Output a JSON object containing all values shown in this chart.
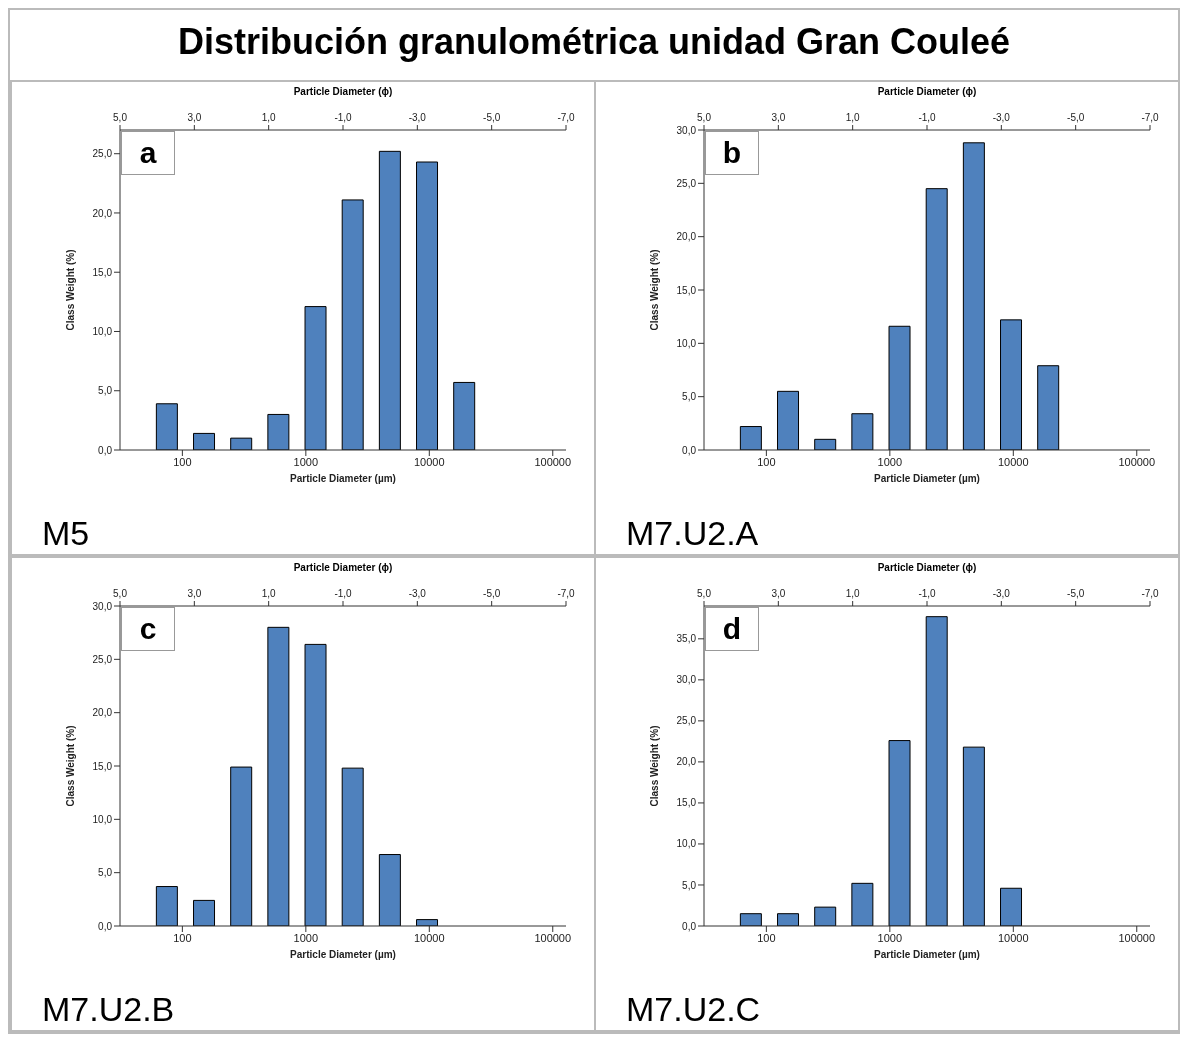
{
  "chart_data": [
    {
      "type": "bar",
      "title": "Distribución granulométrica unidad Gran Couleé",
      "xlabel": "Particle Diameter (µm)",
      "x2label": "Particle Diameter (ϕ)",
      "ylabel": "Class Weight (%)",
      "annotations": [
        "a",
        "M5"
      ],
      "log": "x",
      "color": "#4f81bd",
      "x": [
        75,
        150,
        300,
        600,
        1200,
        2400,
        4800,
        9600,
        19200
      ],
      "values": [
        3.9,
        1.4,
        1.0,
        3.0,
        12.1,
        21.1,
        25.2,
        24.3,
        5.7
      ],
      "xlim": [
        31.25,
        128000
      ],
      "xticks": [
        100,
        1000,
        10000,
        100000
      ],
      "x2lim": [
        5,
        -7
      ],
      "x2ticks": [
        {
          "value": 5,
          "label": "5,0"
        },
        {
          "value": 3,
          "label": "3,0"
        },
        {
          "value": 1,
          "label": "1,0"
        },
        {
          "value": -1,
          "label": "-1,0"
        },
        {
          "value": -3,
          "label": "-3,0"
        },
        {
          "value": -5,
          "label": "-5,0"
        },
        {
          "value": -7,
          "label": "-7,0"
        }
      ],
      "ylim": [
        0,
        27
      ],
      "yticks": [
        {
          "value": 0,
          "label": "0,0"
        },
        {
          "value": 5,
          "label": "5,0"
        },
        {
          "value": 10,
          "label": "10,0"
        },
        {
          "value": 15,
          "label": "15,0"
        },
        {
          "value": 20,
          "label": "20,0"
        },
        {
          "value": 25,
          "label": "25,0"
        }
      ],
      "grid": false
    },
    {
      "type": "bar",
      "xlabel": "Particle Diameter (µm)",
      "x2label": "Particle Diameter (ϕ)",
      "ylabel": "Class Weight (%)",
      "annotations": [
        "b",
        "M7.U2.A"
      ],
      "log": "x",
      "color": "#4f81bd",
      "x": [
        75,
        150,
        300,
        600,
        1200,
        2400,
        4800,
        9600,
        19200
      ],
      "values": [
        2.2,
        5.5,
        1.0,
        3.4,
        11.6,
        24.5,
        28.8,
        12.2,
        7.9
      ],
      "xlim": [
        31.25,
        128000
      ],
      "xticks": [
        100,
        1000,
        10000,
        100000
      ],
      "x2lim": [
        5,
        -7
      ],
      "x2ticks": [
        {
          "value": 5,
          "label": "5,0"
        },
        {
          "value": 3,
          "label": "3,0"
        },
        {
          "value": 1,
          "label": "1,0"
        },
        {
          "value": -1,
          "label": "-1,0"
        },
        {
          "value": -3,
          "label": "-3,0"
        },
        {
          "value": -5,
          "label": "-5,0"
        },
        {
          "value": -7,
          "label": "-7,0"
        }
      ],
      "ylim": [
        0,
        30
      ],
      "yticks": [
        {
          "value": 0,
          "label": "0,0"
        },
        {
          "value": 5,
          "label": "5,0"
        },
        {
          "value": 10,
          "label": "10,0"
        },
        {
          "value": 15,
          "label": "15,0"
        },
        {
          "value": 20,
          "label": "20,0"
        },
        {
          "value": 25,
          "label": "25,0"
        },
        {
          "value": 30,
          "label": "30,0"
        }
      ],
      "grid": false
    },
    {
      "type": "bar",
      "xlabel": "Particle Diameter (µm)",
      "x2label": "Particle Diameter (ϕ)",
      "ylabel": "Class Weight (%)",
      "annotations": [
        "c",
        "M7.U2.B"
      ],
      "log": "x",
      "color": "#4f81bd",
      "x": [
        75,
        150,
        300,
        600,
        1200,
        2400,
        4800,
        9600
      ],
      "values": [
        3.7,
        2.4,
        14.9,
        28.0,
        26.4,
        14.8,
        6.7,
        0.6
      ],
      "xlim": [
        31.25,
        128000
      ],
      "xticks": [
        100,
        1000,
        10000,
        100000
      ],
      "x2lim": [
        5,
        -7
      ],
      "x2ticks": [
        {
          "value": 5,
          "label": "5,0"
        },
        {
          "value": 3,
          "label": "3,0"
        },
        {
          "value": 1,
          "label": "1,0"
        },
        {
          "value": -1,
          "label": "-1,0"
        },
        {
          "value": -3,
          "label": "-3,0"
        },
        {
          "value": -5,
          "label": "-5,0"
        },
        {
          "value": -7,
          "label": "-7,0"
        }
      ],
      "ylim": [
        0,
        30
      ],
      "yticks": [
        {
          "value": 0,
          "label": "0,0"
        },
        {
          "value": 5,
          "label": "5,0"
        },
        {
          "value": 10,
          "label": "10,0"
        },
        {
          "value": 15,
          "label": "15,0"
        },
        {
          "value": 20,
          "label": "20,0"
        },
        {
          "value": 25,
          "label": "25,0"
        },
        {
          "value": 30,
          "label": "30,0"
        }
      ],
      "grid": false
    },
    {
      "type": "bar",
      "xlabel": "Particle Diameter (µm)",
      "x2label": "Particle Diameter (ϕ)",
      "ylabel": "Class Weight (%)",
      "annotations": [
        "d",
        "M7.U2.C"
      ],
      "log": "x",
      "color": "#4f81bd",
      "x": [
        75,
        150,
        300,
        600,
        1200,
        2400,
        4800,
        9600
      ],
      "values": [
        1.5,
        1.5,
        2.3,
        5.2,
        22.6,
        37.7,
        21.8,
        4.6
      ],
      "xlim": [
        31.25,
        128000
      ],
      "xticks": [
        100,
        1000,
        10000,
        100000
      ],
      "x2lim": [
        5,
        -7
      ],
      "x2ticks": [
        {
          "value": 5,
          "label": "5,0"
        },
        {
          "value": 3,
          "label": "3,0"
        },
        {
          "value": 1,
          "label": "1,0"
        },
        {
          "value": -1,
          "label": "-1,0"
        },
        {
          "value": -3,
          "label": "-3,0"
        },
        {
          "value": -5,
          "label": "-5,0"
        },
        {
          "value": -7,
          "label": "-7,0"
        }
      ],
      "ylim": [
        0,
        39
      ],
      "yticks": [
        {
          "value": 0,
          "label": "0,0"
        },
        {
          "value": 5,
          "label": "5,0"
        },
        {
          "value": 10,
          "label": "10,0"
        },
        {
          "value": 15,
          "label": "15,0"
        },
        {
          "value": 20,
          "label": "20,0"
        },
        {
          "value": 25,
          "label": "25,0"
        },
        {
          "value": 30,
          "label": "30,0"
        },
        {
          "value": 35,
          "label": "35,0"
        }
      ],
      "grid": false
    }
  ]
}
